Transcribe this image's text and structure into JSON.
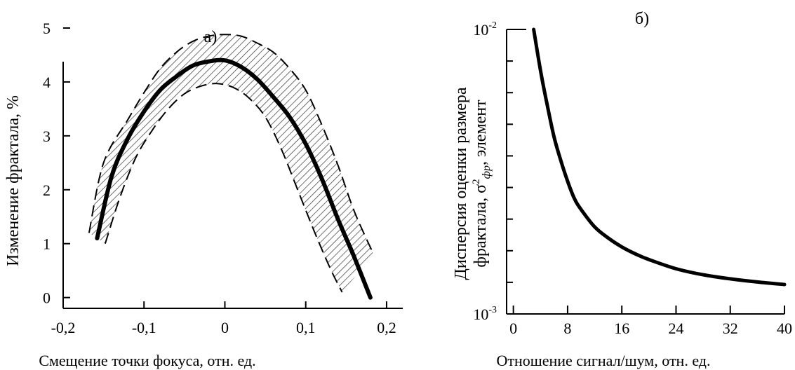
{
  "chart_data": [
    {
      "type": "line",
      "title": "а)",
      "xlabel": "Смещение точки фокуса, отн. ед.",
      "ylabel": "Изменение фрактала, %",
      "xlim": [
        -0.2,
        0.22
      ],
      "ylim": [
        -0.2,
        5.0
      ],
      "xticks": [
        -0.2,
        -0.1,
        0,
        0.1,
        0.2
      ],
      "xtick_labels": [
        "-0,2",
        "-0,1",
        "0",
        "0,1",
        "0,2"
      ],
      "yticks": [
        0,
        1,
        2,
        3,
        4,
        5
      ],
      "ytick_labels": [
        "0",
        "1",
        "2",
        "3",
        "4",
        "5"
      ],
      "grid": false,
      "series": [
        {
          "role": "mean",
          "style": "solid",
          "x": [
            -0.158,
            -0.14,
            -0.12,
            -0.1,
            -0.08,
            -0.06,
            -0.04,
            -0.02,
            0.0,
            0.02,
            0.04,
            0.06,
            0.08,
            0.1,
            0.12,
            0.14,
            0.16,
            0.18
          ],
          "y": [
            1.1,
            2.25,
            2.95,
            3.45,
            3.85,
            4.1,
            4.3,
            4.38,
            4.4,
            4.28,
            4.05,
            3.72,
            3.35,
            2.85,
            2.2,
            1.45,
            0.75,
            0.0
          ]
        },
        {
          "role": "upper",
          "style": "dashed",
          "x": [
            -0.168,
            -0.15,
            -0.12,
            -0.1,
            -0.08,
            -0.06,
            -0.04,
            -0.02,
            0.0,
            0.02,
            0.04,
            0.06,
            0.08,
            0.1,
            0.12,
            0.14,
            0.16,
            0.184
          ],
          "y": [
            1.2,
            2.5,
            3.3,
            3.8,
            4.25,
            4.55,
            4.75,
            4.85,
            4.88,
            4.85,
            4.72,
            4.55,
            4.25,
            3.85,
            3.2,
            2.45,
            1.6,
            0.8
          ]
        },
        {
          "role": "lower",
          "style": "dashed",
          "x": [
            -0.148,
            -0.13,
            -0.11,
            -0.09,
            -0.07,
            -0.05,
            -0.03,
            -0.01,
            0.01,
            0.03,
            0.05,
            0.07,
            0.09,
            0.11,
            0.13,
            0.145
          ],
          "y": [
            1.0,
            1.85,
            2.6,
            3.1,
            3.5,
            3.78,
            3.92,
            3.97,
            3.9,
            3.7,
            3.35,
            2.75,
            2.0,
            1.25,
            0.55,
            0.1
          ]
        }
      ]
    },
    {
      "type": "line",
      "title": "б)",
      "xlabel": "Отношение сигнал/шум, отн. ед.",
      "ylabel": "Дисперсия оценки размера фрактала, σ²фр, элемент",
      "ylabel_line1": "Дисперсия оценки размера",
      "ylabel_line2_pre": "фрактала, σ",
      "ylabel_line2_sup": "2",
      "ylabel_line2_sub": "фр",
      "ylabel_line2_post": ", элемент",
      "xlim": [
        -1,
        40
      ],
      "ylim": [
        0.001,
        0.01
      ],
      "yscale": "linear",
      "xticks": [
        0,
        8,
        16,
        24,
        32,
        40
      ],
      "xtick_labels": [
        "0",
        "8",
        "16",
        "24",
        "32",
        "40"
      ],
      "ytick_labels": [
        {
          "base": "10",
          "exp": "-2",
          "value": 0.01
        },
        {
          "base": "10",
          "exp": "-3",
          "value": 0.001
        }
      ],
      "grid": false,
      "series": [
        {
          "style": "solid",
          "x": [
            3,
            4,
            5,
            6,
            7,
            8,
            9,
            10,
            12,
            14,
            16,
            18,
            20,
            24,
            28,
            32,
            36,
            40
          ],
          "y": [
            0.01,
            0.0087,
            0.0076,
            0.0066,
            0.00585,
            0.0052,
            0.00465,
            0.0043,
            0.00375,
            0.0034,
            0.00312,
            0.0029,
            0.00272,
            0.00243,
            0.00224,
            0.00211,
            0.00201,
            0.00193
          ]
        }
      ]
    }
  ]
}
